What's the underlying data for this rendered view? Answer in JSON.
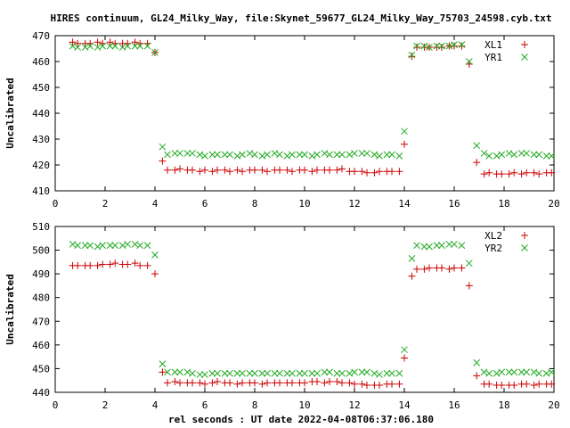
{
  "title": "HIRES continuum, GL24_Milky_Way, file:Skynet_59677_GL24_Milky_Way_75703_24598.cyb.txt",
  "xlabel": "rel seconds : UT date 2022-04-08T06:37:06.180",
  "colors": {
    "series1": "#cc0000",
    "series2": "#22aa22",
    "axis": "#000000"
  },
  "chart_data": [
    {
      "type": "scatter",
      "ylabel": "Uncalibrated",
      "xlim": [
        0,
        20
      ],
      "ylim": [
        410,
        470
      ],
      "xticks": [
        0,
        2,
        4,
        6,
        8,
        10,
        12,
        14,
        16,
        18,
        20
      ],
      "yticks": [
        410,
        420,
        430,
        440,
        450,
        460,
        470
      ],
      "legend_position": "top-right",
      "series": [
        {
          "name": "XL1",
          "marker": "plus",
          "x": [
            0.7,
            0.9,
            1.2,
            1.4,
            1.7,
            1.9,
            2.2,
            2.4,
            2.7,
            2.9,
            3.2,
            3.4,
            3.7,
            4.0,
            4.3,
            4.5,
            4.8,
            5.0,
            5.3,
            5.5,
            5.8,
            6.0,
            6.3,
            6.5,
            6.8,
            7.0,
            7.3,
            7.5,
            7.8,
            8.0,
            8.3,
            8.5,
            8.8,
            9.0,
            9.3,
            9.5,
            9.8,
            10.0,
            10.3,
            10.5,
            10.8,
            11.0,
            11.3,
            11.5,
            11.8,
            12.0,
            12.3,
            12.5,
            12.8,
            13.0,
            13.3,
            13.5,
            13.8,
            14.0,
            14.3,
            14.5,
            14.8,
            15.0,
            15.3,
            15.5,
            15.8,
            16.0,
            16.3,
            16.6,
            16.9,
            17.2,
            17.4,
            17.7,
            17.9,
            18.2,
            18.4,
            18.7,
            18.9,
            19.2,
            19.4,
            19.7,
            19.9
          ],
          "y": [
            467.5,
            467,
            467,
            467,
            467.5,
            467,
            467.5,
            467,
            467,
            467,
            467.5,
            467,
            467,
            463.5,
            421.5,
            418,
            418,
            418.5,
            418,
            418,
            417.5,
            418,
            417.5,
            418,
            418,
            417.5,
            418,
            417.5,
            418,
            418,
            418,
            417.5,
            418,
            418,
            418,
            417.5,
            418,
            418,
            417.5,
            418,
            418,
            418,
            418,
            418.5,
            417.5,
            417.5,
            417.5,
            417,
            417,
            417.5,
            417.5,
            417.5,
            417.5,
            428,
            462,
            465.5,
            465.5,
            465.5,
            465.5,
            465.5,
            466,
            466,
            466,
            459,
            421,
            416.5,
            417,
            416.5,
            416.5,
            416.5,
            417,
            416.5,
            417,
            417,
            416.5,
            417,
            417
          ]
        },
        {
          "name": "YR1",
          "marker": "cross",
          "x": [
            0.7,
            0.9,
            1.2,
            1.4,
            1.7,
            1.9,
            2.2,
            2.4,
            2.7,
            2.9,
            3.2,
            3.4,
            3.7,
            4.0,
            4.3,
            4.5,
            4.8,
            5.0,
            5.3,
            5.5,
            5.8,
            6.0,
            6.3,
            6.5,
            6.8,
            7.0,
            7.3,
            7.5,
            7.8,
            8.0,
            8.3,
            8.5,
            8.8,
            9.0,
            9.3,
            9.5,
            9.8,
            10.0,
            10.3,
            10.5,
            10.8,
            11.0,
            11.3,
            11.5,
            11.8,
            12.0,
            12.3,
            12.5,
            12.8,
            13.0,
            13.3,
            13.5,
            13.8,
            14.0,
            14.3,
            14.5,
            14.8,
            15.0,
            15.3,
            15.5,
            15.8,
            16.0,
            16.3,
            16.6,
            16.9,
            17.2,
            17.4,
            17.7,
            17.9,
            18.2,
            18.4,
            18.7,
            18.9,
            19.2,
            19.4,
            19.7,
            19.9
          ],
          "y": [
            466,
            465.5,
            465.5,
            466,
            465.5,
            466,
            466,
            466,
            465.5,
            466,
            466,
            466,
            466,
            463.5,
            427,
            424,
            424.5,
            424.5,
            424.5,
            424.5,
            424,
            423.5,
            424,
            424,
            424,
            424,
            423.5,
            424,
            424.5,
            424,
            423.5,
            424,
            424.5,
            424,
            423.5,
            424,
            424,
            424,
            423.5,
            424,
            424.5,
            424,
            424,
            424,
            424,
            424.5,
            424.5,
            424.5,
            424,
            423.5,
            424,
            424,
            423.5,
            433,
            462.5,
            466,
            466,
            465.5,
            466,
            466,
            466,
            466.5,
            466.5,
            460,
            427.5,
            424.5,
            423.5,
            423.5,
            424,
            424.5,
            424,
            424.5,
            424.5,
            424,
            424,
            423.5,
            423.5
          ]
        }
      ]
    },
    {
      "type": "scatter",
      "ylabel": "Uncalibrated",
      "xlim": [
        0,
        20
      ],
      "ylim": [
        440,
        510
      ],
      "xticks": [
        0,
        2,
        4,
        6,
        8,
        10,
        12,
        14,
        16,
        18,
        20
      ],
      "yticks": [
        440,
        450,
        460,
        470,
        480,
        490,
        500,
        510
      ],
      "legend_position": "top-right",
      "series": [
        {
          "name": "XL2",
          "marker": "plus",
          "x": [
            0.7,
            0.9,
            1.2,
            1.4,
            1.7,
            1.9,
            2.2,
            2.4,
            2.7,
            2.9,
            3.2,
            3.4,
            3.7,
            4.0,
            4.3,
            4.5,
            4.8,
            5.0,
            5.3,
            5.5,
            5.8,
            6.0,
            6.3,
            6.5,
            6.8,
            7.0,
            7.3,
            7.5,
            7.8,
            8.0,
            8.3,
            8.5,
            8.8,
            9.0,
            9.3,
            9.5,
            9.8,
            10.0,
            10.3,
            10.5,
            10.8,
            11.0,
            11.3,
            11.5,
            11.8,
            12.0,
            12.3,
            12.5,
            12.8,
            13.0,
            13.3,
            13.5,
            13.8,
            14.0,
            14.3,
            14.5,
            14.8,
            15.0,
            15.3,
            15.5,
            15.8,
            16.0,
            16.3,
            16.6,
            16.9,
            17.2,
            17.4,
            17.7,
            17.9,
            18.2,
            18.4,
            18.7,
            18.9,
            19.2,
            19.4,
            19.7,
            19.9
          ],
          "y": [
            493.5,
            493.5,
            493.5,
            493.5,
            493.5,
            494,
            494,
            494.5,
            494,
            494,
            494.5,
            493.5,
            493.5,
            490,
            448.5,
            444,
            444.5,
            444,
            444,
            444,
            444,
            443.5,
            444,
            444.5,
            444,
            444,
            443.5,
            444,
            444,
            444,
            443.5,
            444,
            444,
            444,
            444,
            444,
            444,
            444,
            444.5,
            444.5,
            444,
            444.5,
            444.5,
            444,
            444,
            443.5,
            443.5,
            443,
            443,
            443,
            443.5,
            443.5,
            443.5,
            454.5,
            489,
            492,
            492,
            492.5,
            492.5,
            492.5,
            492,
            492.5,
            492.5,
            485,
            447,
            443.5,
            443.5,
            443,
            443,
            443,
            443,
            443.5,
            443.5,
            443,
            443.5,
            443.5,
            443.5
          ]
        },
        {
          "name": "YR2",
          "marker": "cross",
          "x": [
            0.7,
            0.9,
            1.2,
            1.4,
            1.7,
            1.9,
            2.2,
            2.4,
            2.7,
            2.9,
            3.2,
            3.4,
            3.7,
            4.0,
            4.3,
            4.5,
            4.8,
            5.0,
            5.3,
            5.5,
            5.8,
            6.0,
            6.3,
            6.5,
            6.8,
            7.0,
            7.3,
            7.5,
            7.8,
            8.0,
            8.3,
            8.5,
            8.8,
            9.0,
            9.3,
            9.5,
            9.8,
            10.0,
            10.3,
            10.5,
            10.8,
            11.0,
            11.3,
            11.5,
            11.8,
            12.0,
            12.3,
            12.5,
            12.8,
            13.0,
            13.3,
            13.5,
            13.8,
            14.0,
            14.3,
            14.5,
            14.8,
            15.0,
            15.3,
            15.5,
            15.8,
            16.0,
            16.3,
            16.6,
            16.9,
            17.2,
            17.4,
            17.7,
            17.9,
            18.2,
            18.4,
            18.7,
            18.9,
            19.2,
            19.4,
            19.7,
            19.9
          ],
          "y": [
            502.5,
            502,
            502,
            502,
            501.5,
            502,
            502,
            502,
            502,
            502.5,
            502.5,
            502,
            502,
            498,
            452,
            448.5,
            448.5,
            448.5,
            448.5,
            448,
            447.5,
            447.5,
            448,
            448,
            448,
            448,
            448,
            448,
            448,
            448,
            448,
            448,
            448,
            448,
            448,
            448,
            448,
            448,
            448,
            448,
            448.5,
            448.5,
            448,
            448,
            448,
            448.5,
            448.5,
            448.5,
            448,
            447.5,
            448,
            448,
            448,
            458,
            496.5,
            502,
            501.5,
            501.5,
            502,
            502,
            502.5,
            502.5,
            502,
            494.5,
            452.5,
            448.5,
            448,
            448,
            448.5,
            448.5,
            448.5,
            448.5,
            448.5,
            448.5,
            448,
            448,
            448.5
          ]
        }
      ]
    }
  ]
}
